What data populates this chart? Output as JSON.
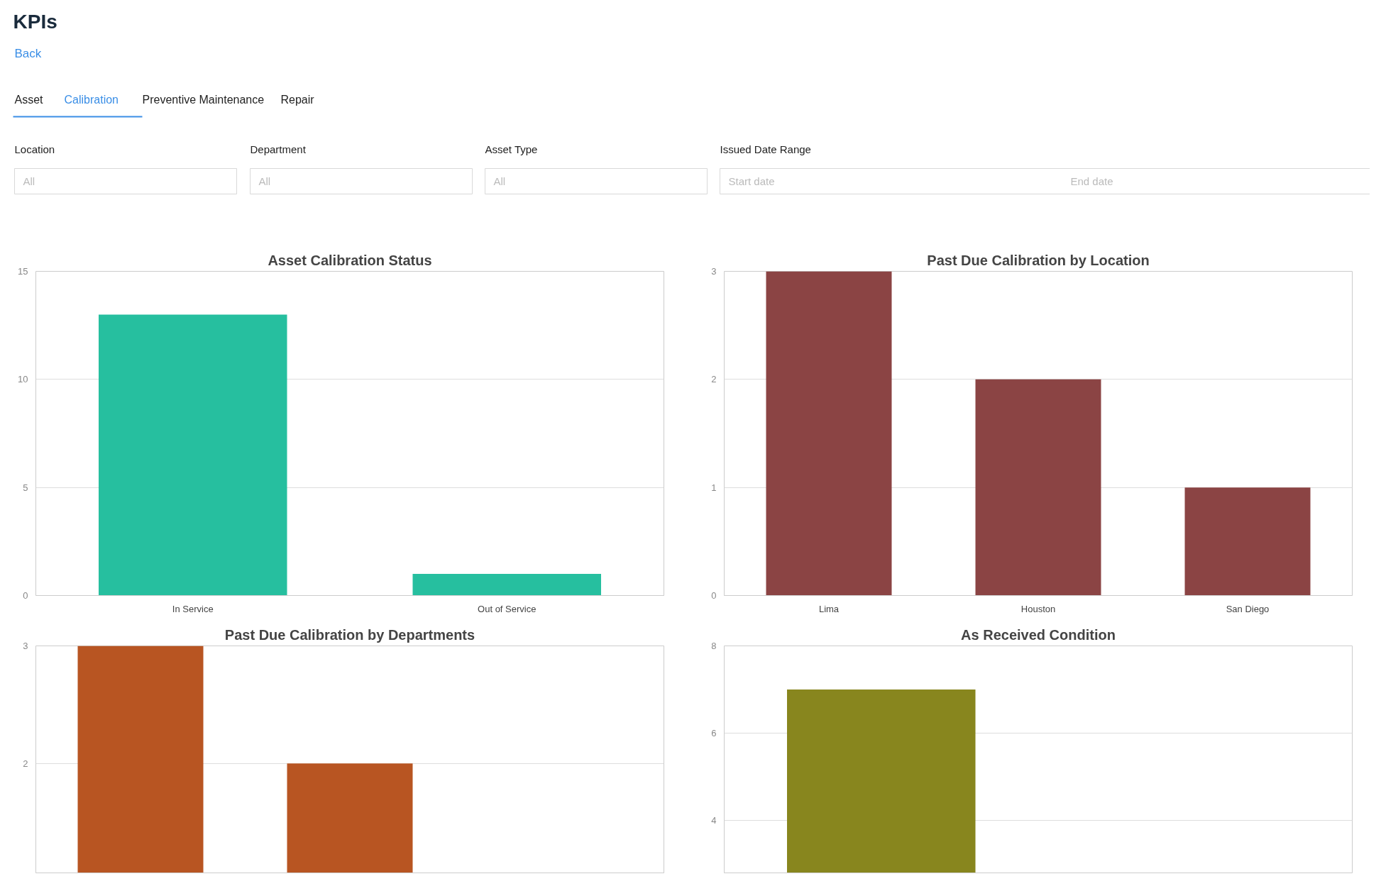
{
  "chart_data": [
    {
      "type": "other",
      "title": "KPIs",
      "annotations": [
        "Back",
        "Asset",
        "Calibration",
        "Preventive Maintenance",
        "Repair",
        "Location",
        "Department",
        "Asset Type",
        "Issued Date Range",
        "All",
        "All",
        "All",
        "Start date",
        "End date"
      ]
    },
    {
      "type": "bar",
      "title": "Asset Calibration Status",
      "categories": [
        "In Service",
        "Out of Service"
      ],
      "values": [
        13,
        1
      ],
      "color": "#26bf9f",
      "ylim": [
        0,
        15
      ],
      "yticks": [
        0,
        5,
        10,
        15
      ],
      "grid": "y"
    },
    {
      "type": "bar",
      "title": "Past Due Calibration by Location",
      "categories": [
        "Lima",
        "Houston",
        "San Diego"
      ],
      "values": [
        3,
        2,
        1
      ],
      "color": "#8b4444",
      "ylim": [
        0,
        3
      ],
      "yticks": [
        0,
        1,
        2,
        3
      ],
      "grid": "y"
    },
    {
      "type": "bar",
      "title": "Past Due Calibration by Departments",
      "categories": [
        null,
        null,
        null
      ],
      "values": [
        3,
        2,
        null
      ],
      "color": "#b85522",
      "ylim": [
        1.07,
        3
      ],
      "yticks": [
        2,
        3
      ],
      "grid": "y",
      "tick_labels": "y"
    },
    {
      "type": "bar",
      "title": "As Received Condition",
      "categories": [
        null,
        null
      ],
      "values": [
        7,
        null
      ],
      "color": "#88861e",
      "ylim": [
        2.8,
        8
      ],
      "yticks": [
        4,
        6,
        8
      ],
      "grid": "y",
      "tick_labels": "y"
    }
  ]
}
